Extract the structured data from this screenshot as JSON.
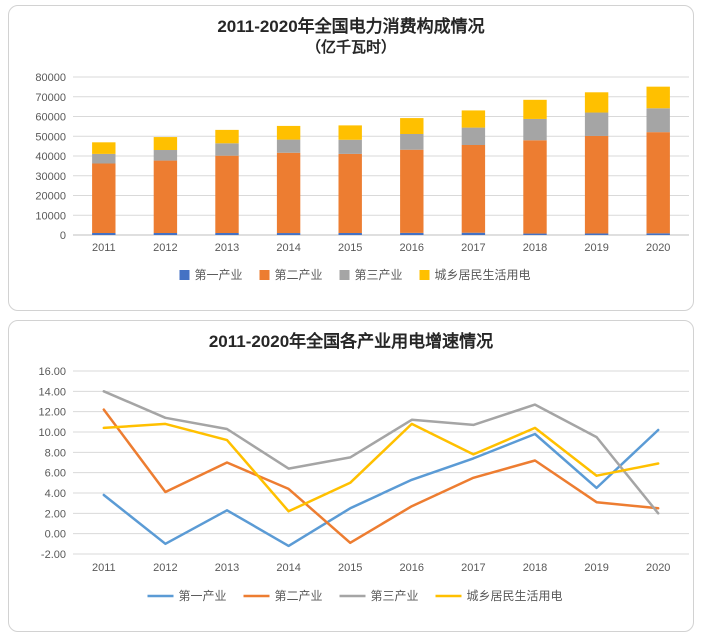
{
  "chart_data": [
    {
      "type": "bar",
      "stacked": true,
      "title": "2011-2020年全国电力消费构成情况",
      "subtitle": "（亿千瓦时）",
      "categories": [
        "2011",
        "2012",
        "2013",
        "2014",
        "2015",
        "2016",
        "2017",
        "2018",
        "2019",
        "2020"
      ],
      "series": [
        {
          "name": "第一产业",
          "color": "#4472C4",
          "values": [
            1015,
            1013,
            1014,
            994,
            1020,
            1075,
            1155,
            728,
            780,
            859
          ]
        },
        {
          "name": "第二产业",
          "color": "#ED7D31",
          "values": [
            35185,
            36669,
            39143,
            40650,
            40046,
            42108,
            44413,
            47235,
            49362,
            51215
          ]
        },
        {
          "name": "第三产业",
          "color": "#A5A5A5",
          "values": [
            4863,
            5350,
            6273,
            6660,
            7158,
            7961,
            8814,
            10801,
            11863,
            12087
          ]
        },
        {
          "name": "城乡居民生活用电",
          "color": "#FFC000",
          "values": [
            5865,
            6559,
            6793,
            6928,
            7276,
            8054,
            8695,
            9685,
            10250,
            10949
          ]
        }
      ],
      "ylim": [
        0,
        80000
      ],
      "ytick_step": 10000,
      "yticks": [
        "0",
        "10000",
        "20000",
        "30000",
        "40000",
        "50000",
        "60000",
        "70000",
        "80000"
      ],
      "grid": true,
      "legend_position": "bottom",
      "axis_color": "#bfbfbf",
      "grid_color": "#d9d9d9"
    },
    {
      "type": "line",
      "title": "2011-2020年全国各产业用电增速情况",
      "subtitle": "",
      "categories": [
        "2011",
        "2012",
        "2013",
        "2014",
        "2015",
        "2016",
        "2017",
        "2018",
        "2019",
        "2020"
      ],
      "series": [
        {
          "name": "第一产业",
          "color": "#5B9BD5",
          "values": [
            3.8,
            -1.0,
            2.3,
            -1.2,
            2.5,
            5.3,
            7.4,
            9.8,
            4.5,
            10.2
          ]
        },
        {
          "name": "第二产业",
          "color": "#ED7D31",
          "values": [
            12.2,
            4.1,
            7.0,
            4.4,
            -0.9,
            2.7,
            5.5,
            7.2,
            3.1,
            2.5
          ]
        },
        {
          "name": "第三产业",
          "color": "#A5A5A5",
          "values": [
            14.0,
            11.4,
            10.3,
            6.4,
            7.5,
            11.2,
            10.7,
            12.7,
            9.5,
            2.0
          ]
        },
        {
          "name": "城乡居民生活用电",
          "color": "#FFC000",
          "values": [
            10.4,
            10.8,
            9.2,
            2.2,
            5.0,
            10.8,
            7.8,
            10.4,
            5.7,
            6.9
          ]
        }
      ],
      "ylim": [
        -2,
        16
      ],
      "ytick_step": 2,
      "ytick_format": "2dp",
      "yticks": [
        "-2.00",
        "0.00",
        "2.00",
        "4.00",
        "6.00",
        "8.00",
        "10.00",
        "12.00",
        "14.00",
        "16.00"
      ],
      "grid": true,
      "legend_position": "bottom",
      "axis_color": "#bfbfbf",
      "grid_color": "#d9d9d9"
    }
  ]
}
